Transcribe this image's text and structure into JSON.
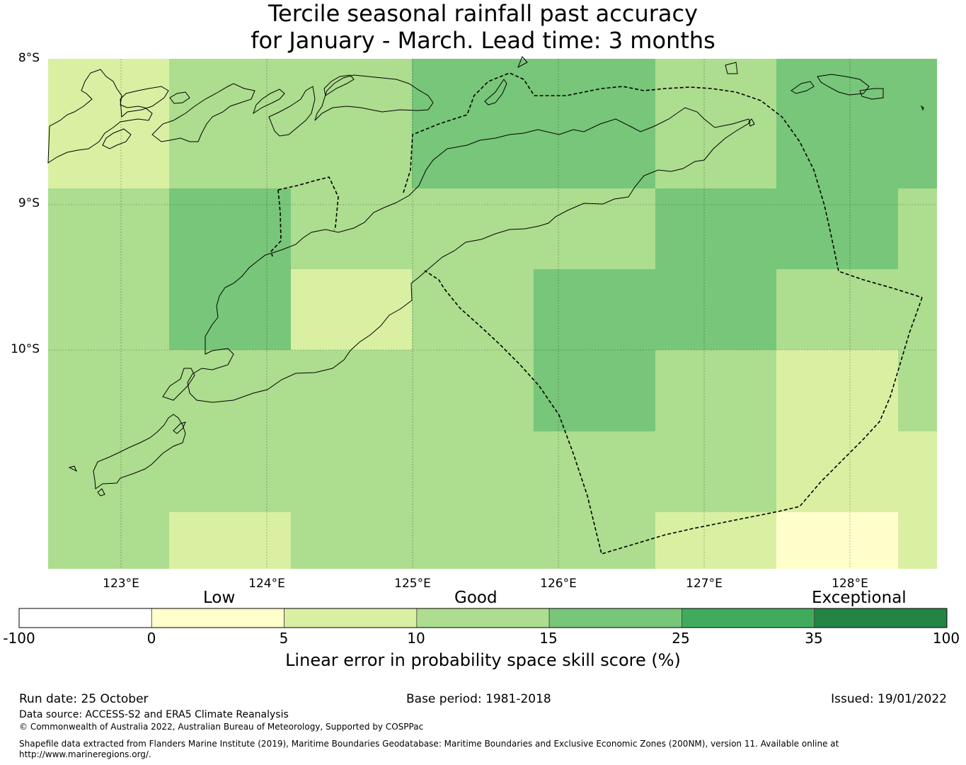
{
  "title": {
    "line1": "Tercile seasonal rainfall past accuracy",
    "line2": "for January - March. Lead time: 3 months"
  },
  "map": {
    "lat_labels": [
      "8°S",
      "9°S",
      "10°S"
    ],
    "lon_labels": [
      "123°E",
      "124°E",
      "125°E",
      "126°E",
      "127°E",
      "128°E"
    ],
    "grid_levels": [
      [
        "5-10",
        "10-15",
        "10-15",
        "15-25",
        "15-25",
        "10-15",
        "15-25"
      ],
      [
        "10-15",
        "15-25",
        "10-15",
        "10-15",
        "10-15",
        "15-25",
        "15-25",
        "10-15"
      ],
      [
        "10-15",
        "15-25",
        "5-10",
        "10-15",
        "15-25",
        "15-25",
        "10-15",
        "10-15"
      ],
      [
        "10-15",
        "10-15",
        "10-15",
        "10-15",
        "15-25",
        "10-15",
        "5-10",
        "10-15"
      ],
      [
        "10-15",
        "10-15",
        "10-15",
        "10-15",
        "10-15",
        "10-15",
        "5-10",
        "5-10"
      ],
      [
        "10-15",
        "5-10",
        "10-15",
        "10-15",
        "10-15",
        "5-10",
        "0-5",
        "5-10"
      ]
    ]
  },
  "legend": {
    "categories": [
      "Low",
      "Good",
      "Exceptional"
    ],
    "ticks": [
      "-100",
      "0",
      "5",
      "10",
      "15",
      "25",
      "35",
      "100"
    ],
    "colors": [
      "#ffffff",
      "#ffffcc",
      "#d9f0a3",
      "#addd8e",
      "#78c679",
      "#41ab5d",
      "#238443"
    ],
    "title": "Linear error in probability space skill score (%)"
  },
  "footer": {
    "run_date": "Run date: 25 October",
    "base_period": "Base period: 1981-2018",
    "issued": "Issued: 19/01/2022",
    "data_source": "Data source: ACCESS-S2 and ERA5 Climate Reanalysis",
    "copyright": "© Commonwealth of Australia 2022, Australian Bureau of Meteorology, Supported by COSPPac",
    "shapefile": "Shapefile data extracted from Flanders Marine Institute (2019), Maritime Boundaries Geodatabase: Maritime Boundaries and Exclusive Economic Zones (200NM), version 11. Available online at",
    "url": "http://www.marineregions.org/."
  }
}
